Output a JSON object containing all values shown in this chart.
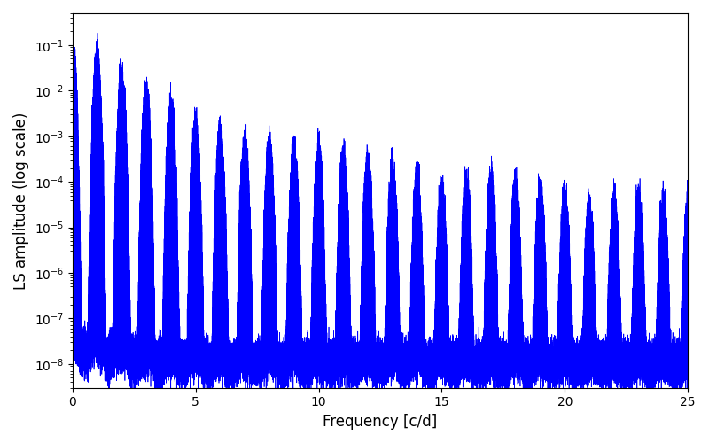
{
  "xlabel": "Frequency [c/d]",
  "ylabel": "LS amplitude (log scale)",
  "xlim": [
    0,
    25
  ],
  "ylim": [
    3e-09,
    0.5
  ],
  "line_color": "#0000ff",
  "line_width": 0.5,
  "background_color": "#ffffff",
  "freq_max": 25.0,
  "n_points": 80000,
  "seed": 42
}
